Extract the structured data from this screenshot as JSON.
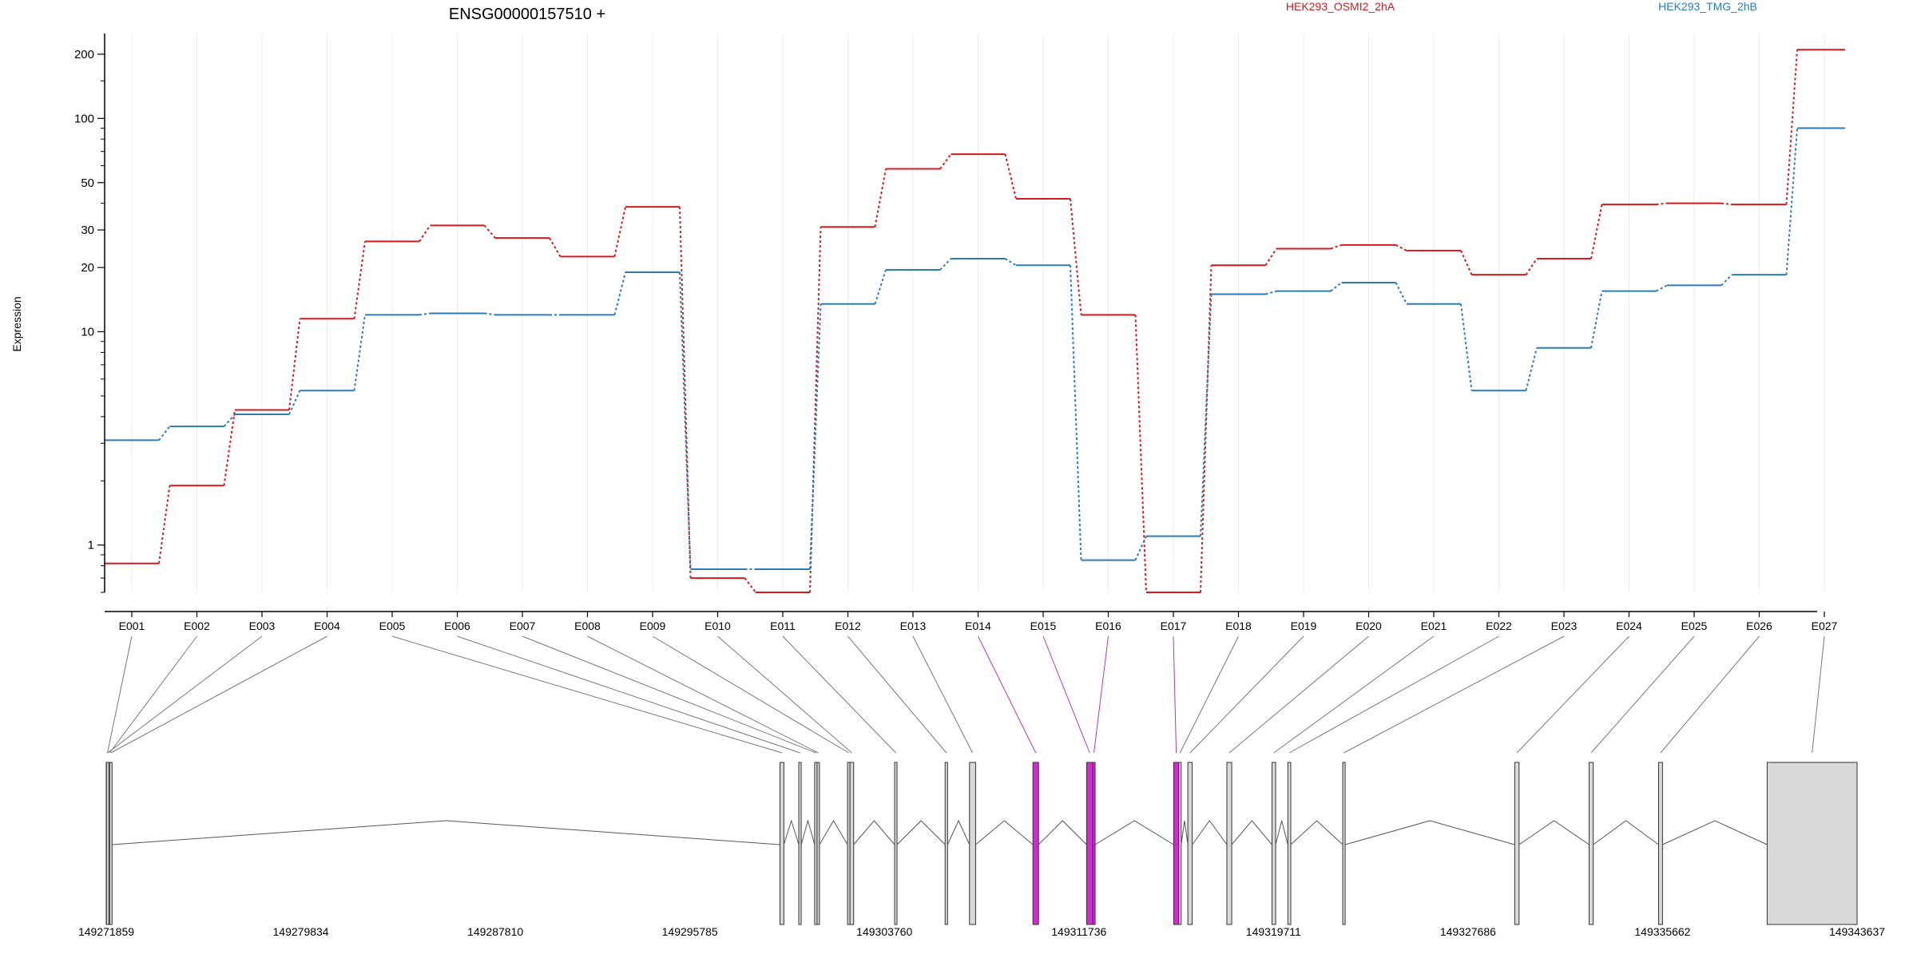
{
  "chart_data": {
    "type": "line",
    "title": "ENSG00000157510 +",
    "xlabel": "",
    "ylabel": "Expression",
    "y_scale": "log",
    "ylim": [
      0.6,
      250
    ],
    "yticks": [
      1,
      10,
      20,
      30,
      50,
      100,
      200
    ],
    "yticks_minor": [
      0.6,
      0.7,
      0.8,
      0.9,
      2,
      3,
      4,
      5,
      6,
      7,
      8,
      9,
      40,
      60,
      70,
      80,
      90,
      150
    ],
    "grid": "vertical",
    "legend_position": "top",
    "categories": [
      "E001",
      "E002",
      "E003",
      "E004",
      "E005",
      "E006",
      "E007",
      "E008",
      "E009",
      "E010",
      "E011",
      "E012",
      "E013",
      "E014",
      "E015",
      "E016",
      "E017",
      "E018",
      "E019",
      "E020",
      "E021",
      "E022",
      "E023",
      "E024",
      "E025",
      "E026",
      "E027"
    ],
    "series": [
      {
        "name": "HEK293_OSMI2_2hA",
        "color": "#d7191c",
        "values": [
          0.82,
          1.9,
          4.3,
          11.5,
          26.5,
          31.5,
          27.5,
          22.5,
          38.5,
          0.7,
          0.6,
          31,
          58,
          68,
          42,
          12,
          0.6,
          20.5,
          24.5,
          25.5,
          24,
          18.5,
          22,
          39.5,
          40,
          39.5,
          210
        ]
      },
      {
        "name": "HEK293_TMG_2hB",
        "color": "#2c7bb6",
        "values": [
          3.1,
          3.6,
          4.1,
          5.3,
          12,
          12.2,
          12,
          12,
          19,
          0.77,
          0.77,
          13.5,
          19.5,
          22,
          20.5,
          0.85,
          1.1,
          15,
          15.5,
          17,
          13.5,
          5.3,
          8.4,
          15.5,
          16.5,
          18.5,
          90
        ]
      }
    ],
    "exon_highlight": [
      false,
      false,
      false,
      false,
      false,
      false,
      false,
      false,
      false,
      false,
      false,
      false,
      false,
      true,
      true,
      true,
      true,
      false,
      false,
      false,
      false,
      false,
      false,
      false,
      false,
      false,
      false
    ],
    "gene_model": {
      "coordinate_ticks": [
        "149271859",
        "149279834",
        "149287810",
        "149295785",
        "149303760",
        "149311736",
        "149319711",
        "149327686",
        "149335662",
        "149343637"
      ],
      "coord_start": 149271859,
      "coord_end": 149343637,
      "exons": [
        {
          "start": 149271859,
          "end": 149271950
        },
        {
          "start": 149271950,
          "end": 149272000
        },
        {
          "start": 149271870,
          "end": 149271920
        },
        {
          "start": 149272000,
          "end": 149272060
        },
        {
          "start": 149299480,
          "end": 149299640
        },
        {
          "start": 149300250,
          "end": 149300350
        },
        {
          "start": 149300900,
          "end": 149301000
        },
        {
          "start": 149301000,
          "end": 149301050
        },
        {
          "start": 149302250,
          "end": 149302350
        },
        {
          "start": 149302350,
          "end": 149302500
        },
        {
          "start": 149304180,
          "end": 149304230
        },
        {
          "start": 149306250,
          "end": 149306350
        },
        {
          "start": 149307250,
          "end": 149307500
        },
        {
          "start": 149309850,
          "end": 149310080
        },
        {
          "start": 149312050,
          "end": 149312300
        },
        {
          "start": 149312300,
          "end": 149312400
        },
        {
          "start": 149315620,
          "end": 149315830
        },
        {
          "start": 149315830,
          "end": 149315900
        },
        {
          "start": 149316200,
          "end": 149316380
        },
        {
          "start": 149317800,
          "end": 149318000
        },
        {
          "start": 149319650,
          "end": 149319800
        },
        {
          "start": 149320300,
          "end": 149320420
        },
        {
          "start": 149322550,
          "end": 149322650
        },
        {
          "start": 149329600,
          "end": 149329780
        },
        {
          "start": 149332650,
          "end": 149332820
        },
        {
          "start": 149335500,
          "end": 149335660
        },
        {
          "start": 149339950,
          "end": 149343637
        }
      ]
    }
  }
}
